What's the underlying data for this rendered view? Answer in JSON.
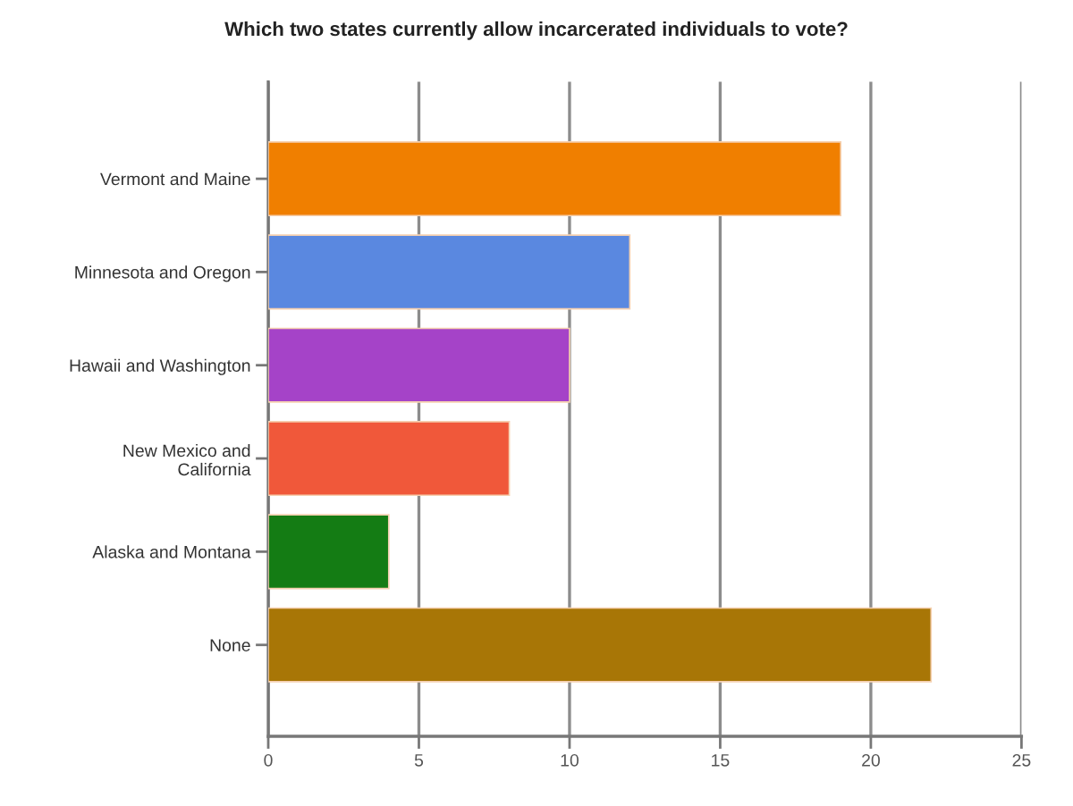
{
  "chart_data": {
    "type": "bar",
    "orientation": "horizontal",
    "title": "Which two states currently allow incarcerated individuals to vote?",
    "categories": [
      "Vermont and Maine",
      "Minnesota and Oregon",
      "Hawaii and Washington",
      "New Mexico and\nCalifornia",
      "Alaska and Montana",
      "None"
    ],
    "values": [
      19,
      12,
      10,
      8,
      4,
      22
    ],
    "colors": [
      "#f07f00",
      "#5a88e0",
      "#a543c8",
      "#f0583a",
      "#147c14",
      "#a87606"
    ],
    "xlim": [
      0,
      25
    ],
    "xticks": [
      0,
      5,
      10,
      15,
      20,
      25
    ],
    "grid": "x",
    "legend": false
  }
}
